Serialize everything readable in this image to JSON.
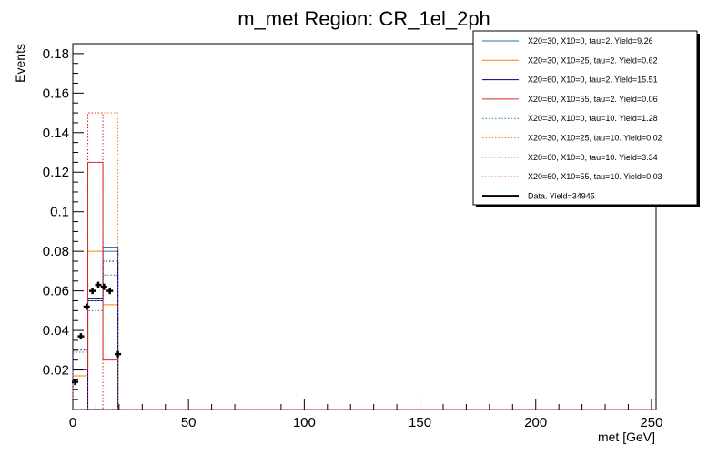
{
  "chart_data": {
    "type": "histogram",
    "title": "m_met Region: CR_1el_2ph",
    "xlabel": "met [GeV]",
    "ylabel": "Events",
    "xlim": [
      0,
      252
    ],
    "ylim": [
      0,
      0.185
    ],
    "x_ticks": [
      0,
      50,
      100,
      150,
      200,
      250
    ],
    "x_tick_labels": [
      "0",
      "50",
      "100",
      "150",
      "200",
      "250"
    ],
    "y_ticks": [
      0.02,
      0.04,
      0.06,
      0.08,
      0.1,
      0.12,
      0.14,
      0.16,
      0.18
    ],
    "y_tick_labels": [
      "0.02",
      "0.04",
      "0.06",
      "0.08",
      "0.1",
      "0.12",
      "0.14",
      "0.16",
      "0.18"
    ],
    "grid": false,
    "legend_position": "top-right",
    "series": [
      {
        "name": "X20=30, X10=0, tau=2. Yield=9.26",
        "color": "#1f77b4",
        "style": "solid",
        "bin_edges": [
          0,
          6.5,
          13,
          19.5
        ],
        "values": [
          0.0,
          0.055,
          0.08
        ]
      },
      {
        "name": "X20=30, X10=25, tau=2. Yield=0.62",
        "color": "#ff7f0e",
        "style": "solid",
        "bin_edges": [
          0,
          6.5,
          13,
          19.5
        ],
        "values": [
          0.017,
          0.08,
          0.053
        ]
      },
      {
        "name": "X20=60, X10=0, tau=2. Yield=15.51",
        "color": "#000080",
        "style": "solid",
        "bin_edges": [
          0,
          6.5,
          13,
          19.5
        ],
        "values": [
          0.0,
          0.056,
          0.082
        ]
      },
      {
        "name": "X20=60, X10=55, tau=2. Yield=0.06",
        "color": "#d62728",
        "style": "solid",
        "bin_edges": [
          0,
          6.5,
          13,
          19.5
        ],
        "values": [
          0.02,
          0.125,
          0.025
        ]
      },
      {
        "name": "X20=30, X10=0, tau=10. Yield=1.28",
        "color": "#1f77b4",
        "style": "dotted",
        "bin_edges": [
          0,
          6.5,
          13,
          19.5
        ],
        "values": [
          0.029,
          0.05,
          0.068
        ]
      },
      {
        "name": "X20=30, X10=25, tau=10. Yield=0.02",
        "color": "#ff7f0e",
        "style": "dotted",
        "bin_edges": [
          0,
          6.5,
          13,
          19.5
        ],
        "values": [
          0.0,
          0.15,
          0.15
        ]
      },
      {
        "name": "X20=60, X10=0, tau=10. Yield=3.34",
        "color": "#000080",
        "style": "dotted",
        "bin_edges": [
          0,
          6.5,
          13,
          19.5
        ],
        "values": [
          0.03,
          0.055,
          0.075
        ]
      },
      {
        "name": "X20=60, X10=55, tau=10. Yield=0.03",
        "color": "#d62728",
        "style": "dotted",
        "bin_edges": [
          0,
          6.5,
          13,
          19.5
        ],
        "values": [
          0.0,
          0.15,
          0.0
        ]
      }
    ],
    "data_series": {
      "name": "Data. Yield=34945",
      "color": "#000000",
      "points": [
        {
          "x": 1,
          "y": 0.014
        },
        {
          "x": 3.5,
          "y": 0.037
        },
        {
          "x": 6,
          "y": 0.052
        },
        {
          "x": 8.5,
          "y": 0.06
        },
        {
          "x": 11,
          "y": 0.063
        },
        {
          "x": 13.5,
          "y": 0.062
        },
        {
          "x": 16,
          "y": 0.06
        },
        {
          "x": 19.5,
          "y": 0.028
        }
      ]
    }
  }
}
